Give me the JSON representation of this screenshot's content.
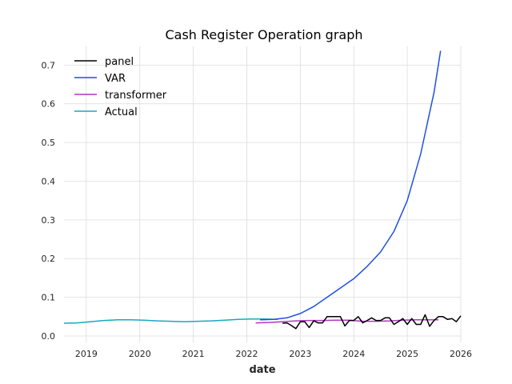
{
  "chart_data": {
    "type": "line",
    "title": "Cash Register Operation graph",
    "xlabel": "date",
    "ylabel": "",
    "xlim": [
      "2018-08-01",
      "2026-01-01"
    ],
    "ylim": [
      0.0,
      0.74
    ],
    "x_ticks": [
      "2019",
      "2020",
      "2021",
      "2022",
      "2023",
      "2024",
      "2025",
      "2026"
    ],
    "y_ticks": [
      "0.0",
      "0.1",
      "0.2",
      "0.3",
      "0.4",
      "0.5",
      "0.6",
      "0.7"
    ],
    "grid": true,
    "legend_position": "top-left",
    "series": [
      {
        "name": "panel",
        "color": "#000000",
        "points": [
          [
            "2022-09-01",
            0.033
          ],
          [
            "2022-10-01",
            0.034
          ],
          [
            "2022-11-01",
            0.027
          ],
          [
            "2022-12-01",
            0.019
          ],
          [
            "2023-01-01",
            0.037
          ],
          [
            "2023-02-01",
            0.037
          ],
          [
            "2023-03-01",
            0.022
          ],
          [
            "2023-04-01",
            0.039
          ],
          [
            "2023-05-01",
            0.034
          ],
          [
            "2023-06-01",
            0.034
          ],
          [
            "2023-07-01",
            0.05
          ],
          [
            "2023-08-01",
            0.05
          ],
          [
            "2023-09-01",
            0.05
          ],
          [
            "2023-10-01",
            0.05
          ],
          [
            "2023-11-01",
            0.026
          ],
          [
            "2023-12-01",
            0.04
          ],
          [
            "2024-01-01",
            0.04
          ],
          [
            "2024-02-01",
            0.05
          ],
          [
            "2024-03-01",
            0.034
          ],
          [
            "2024-04-01",
            0.04
          ],
          [
            "2024-05-01",
            0.047
          ],
          [
            "2024-06-01",
            0.04
          ],
          [
            "2024-07-01",
            0.04
          ],
          [
            "2024-08-01",
            0.047
          ],
          [
            "2024-09-01",
            0.047
          ],
          [
            "2024-10-01",
            0.03
          ],
          [
            "2024-11-01",
            0.037
          ],
          [
            "2024-12-01",
            0.045
          ],
          [
            "2025-01-01",
            0.03
          ],
          [
            "2025-02-01",
            0.045
          ],
          [
            "2025-03-01",
            0.03
          ],
          [
            "2025-04-01",
            0.03
          ],
          [
            "2025-05-01",
            0.055
          ],
          [
            "2025-06-01",
            0.025
          ],
          [
            "2025-07-01",
            0.04
          ],
          [
            "2025-08-01",
            0.05
          ],
          [
            "2025-09-01",
            0.05
          ],
          [
            "2025-10-01",
            0.043
          ],
          [
            "2025-11-01",
            0.045
          ],
          [
            "2025-12-01",
            0.037
          ],
          [
            "2026-01-01",
            0.052
          ],
          [
            "2026-02-01",
            0.052
          ]
        ]
      },
      {
        "name": "VAR",
        "color": "#1f4fe6",
        "points": [
          [
            "2022-04-01",
            0.042
          ],
          [
            "2022-07-01",
            0.043
          ],
          [
            "2022-10-01",
            0.047
          ],
          [
            "2023-01-01",
            0.058
          ],
          [
            "2023-04-01",
            0.076
          ],
          [
            "2023-07-01",
            0.1
          ],
          [
            "2023-10-01",
            0.124
          ],
          [
            "2024-01-01",
            0.148
          ],
          [
            "2024-04-01",
            0.18
          ],
          [
            "2024-07-01",
            0.217
          ],
          [
            "2024-10-01",
            0.27
          ],
          [
            "2025-01-01",
            0.35
          ],
          [
            "2025-04-01",
            0.47
          ],
          [
            "2025-07-01",
            0.63
          ],
          [
            "2025-08-15",
            0.737
          ]
        ]
      },
      {
        "name": "transformer",
        "color": "#b136c4",
        "points": [
          [
            "2022-03-01",
            0.034
          ],
          [
            "2022-06-01",
            0.035
          ],
          [
            "2022-09-01",
            0.037
          ],
          [
            "2022-12-01",
            0.039
          ],
          [
            "2023-03-01",
            0.04
          ],
          [
            "2023-06-01",
            0.04
          ],
          [
            "2023-09-01",
            0.041
          ],
          [
            "2023-12-01",
            0.041
          ],
          [
            "2024-03-01",
            0.038
          ],
          [
            "2024-06-01",
            0.038
          ],
          [
            "2024-09-01",
            0.039
          ],
          [
            "2024-12-01",
            0.041
          ],
          [
            "2025-03-01",
            0.042
          ],
          [
            "2025-06-01",
            0.042
          ],
          [
            "2025-08-01",
            0.042
          ]
        ]
      },
      {
        "name": "Actual",
        "color": "#17a9bd",
        "points": [
          [
            "2018-08-01",
            0.033
          ],
          [
            "2018-11-01",
            0.034
          ],
          [
            "2019-02-01",
            0.037
          ],
          [
            "2019-05-01",
            0.04
          ],
          [
            "2019-08-01",
            0.042
          ],
          [
            "2019-11-01",
            0.042
          ],
          [
            "2020-02-01",
            0.041
          ],
          [
            "2020-05-01",
            0.039
          ],
          [
            "2020-08-01",
            0.038
          ],
          [
            "2020-11-01",
            0.037
          ],
          [
            "2021-02-01",
            0.038
          ],
          [
            "2021-05-01",
            0.039
          ],
          [
            "2021-08-01",
            0.041
          ],
          [
            "2021-11-01",
            0.043
          ],
          [
            "2022-02-01",
            0.044
          ],
          [
            "2022-05-01",
            0.044
          ],
          [
            "2022-08-01",
            0.043
          ]
        ]
      }
    ]
  }
}
